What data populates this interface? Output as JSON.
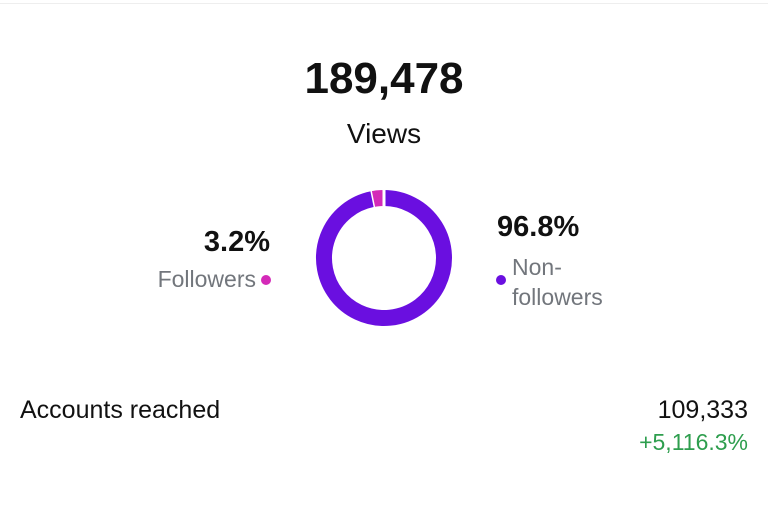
{
  "header": {
    "total": "189,478",
    "label": "Views"
  },
  "chart_data": {
    "type": "donut",
    "categories": [
      "Followers",
      "Non-followers"
    ],
    "values": [
      3.2,
      96.8
    ],
    "value_labels": [
      "3.2%",
      "96.8%"
    ],
    "colors": [
      "#d42ab8",
      "#6a0fe0"
    ]
  },
  "accounts_reached": {
    "label": "Accounts reached",
    "value": "109,333",
    "change": "+5,116.3%"
  }
}
